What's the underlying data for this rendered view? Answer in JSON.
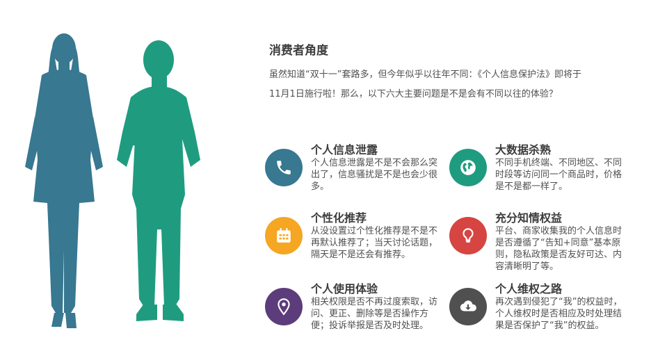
{
  "intro": {
    "title": "消费者角度",
    "text": "虽然知道“双十一”套路多，但今年似乎以往年不同：《个人信息保护法》即将于11月1日施行啦！那么，以下六大主要问题是不是会有不同以往的体验？"
  },
  "colors": {
    "woman": "#387890",
    "man": "#1f9c80",
    "phone": "#387890",
    "globe": "#1f9c80",
    "calendar": "#f5a623",
    "bulb": "#d64541",
    "pin": "#5c3c7a",
    "cloud": "#505050"
  },
  "items": [
    {
      "title": "个人信息泄露",
      "desc": "个人信息泄露是不是不会那么突出了，信息骚扰是不是也会少很多。",
      "icon": "phone-icon"
    },
    {
      "title": "大数据杀熟",
      "desc": "不同手机终端、不同地区、不同时段等访问同一个商品时，价格是不是都一样了。",
      "icon": "globe-icon"
    },
    {
      "title": "个性化推荐",
      "desc": "从没设置过个性化推荐是不是不再默认推荐了；当天讨论话题，隔天是不是还会有推荐。",
      "icon": "calendar-icon"
    },
    {
      "title": "充分知情权益",
      "desc": "平台、商家收集我的个人信息时是否遵循了“告知+同意”基本原则，隐私政策是否友好可达、内容清晰明了等。",
      "icon": "lightbulb-icon"
    },
    {
      "title": "个人使用体验",
      "desc": "相关权限是否不再过度索取，访问、更正、删除等是否操作方便；投诉举报是否及时处理。",
      "icon": "location-pin-icon"
    },
    {
      "title": "个人维权之路",
      "desc": "再次遇到侵犯了“我”的权益时，个人维权时是否相应及时处理结果是否保护了“我”的权益。",
      "icon": "cloud-download-icon"
    }
  ]
}
